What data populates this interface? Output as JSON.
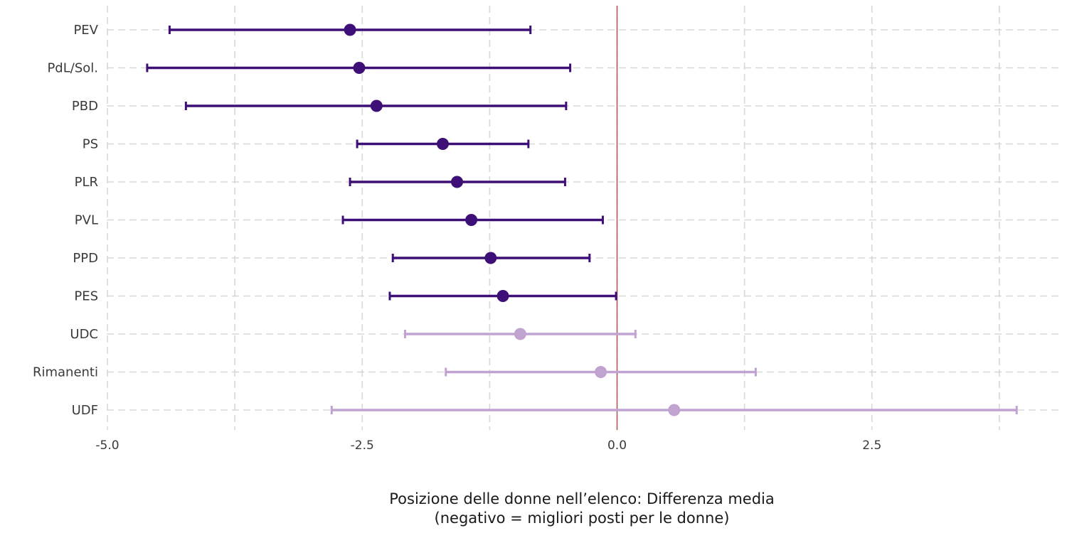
{
  "chart_data": {
    "type": "scatter",
    "orientation": "horizontal-errorbar",
    "title": "",
    "xlabel_line1": "Posizione delle donne nell’elenco: Differenza media",
    "xlabel_line2": "(negativo = migliori posti per le donne)",
    "ylabel": "",
    "xlim": [
      -5.0,
      4.0
    ],
    "xticks": [
      -5.0,
      -2.5,
      0.0,
      2.5
    ],
    "xtick_labels": [
      "-5.0",
      "-2.5",
      "0.0",
      "2.5"
    ],
    "grid": true,
    "reference_line_x": 0.0,
    "colors": {
      "significant": "#3f0f78",
      "not_significant": "#c1a3d2",
      "reference_line": "#b05a5a",
      "grid": "#d8d8d8"
    },
    "rows": [
      {
        "label": "PEV",
        "estimate": -2.62,
        "low": -4.39,
        "high": -0.85,
        "significant": true
      },
      {
        "label": "PdL/Sol.",
        "estimate": -2.53,
        "low": -4.61,
        "high": -0.46,
        "significant": true
      },
      {
        "label": "PBD",
        "estimate": -2.36,
        "low": -4.23,
        "high": -0.5,
        "significant": true
      },
      {
        "label": "PS",
        "estimate": -1.71,
        "low": -2.55,
        "high": -0.87,
        "significant": true
      },
      {
        "label": "PLR",
        "estimate": -1.57,
        "low": -2.62,
        "high": -0.51,
        "significant": true
      },
      {
        "label": "PVL",
        "estimate": -1.43,
        "low": -2.69,
        "high": -0.14,
        "significant": true
      },
      {
        "label": "PPD",
        "estimate": -1.24,
        "low": -2.2,
        "high": -0.27,
        "significant": true
      },
      {
        "label": "PES",
        "estimate": -1.12,
        "low": -2.23,
        "high": -0.01,
        "significant": true
      },
      {
        "label": "UDC",
        "estimate": -0.95,
        "low": -2.08,
        "high": 0.18,
        "significant": false
      },
      {
        "label": "Rimanenti",
        "estimate": -0.16,
        "low": -1.68,
        "high": 1.36,
        "significant": false
      },
      {
        "label": "UDF",
        "estimate": 0.56,
        "low": -2.8,
        "high": 3.92,
        "significant": false
      }
    ]
  }
}
